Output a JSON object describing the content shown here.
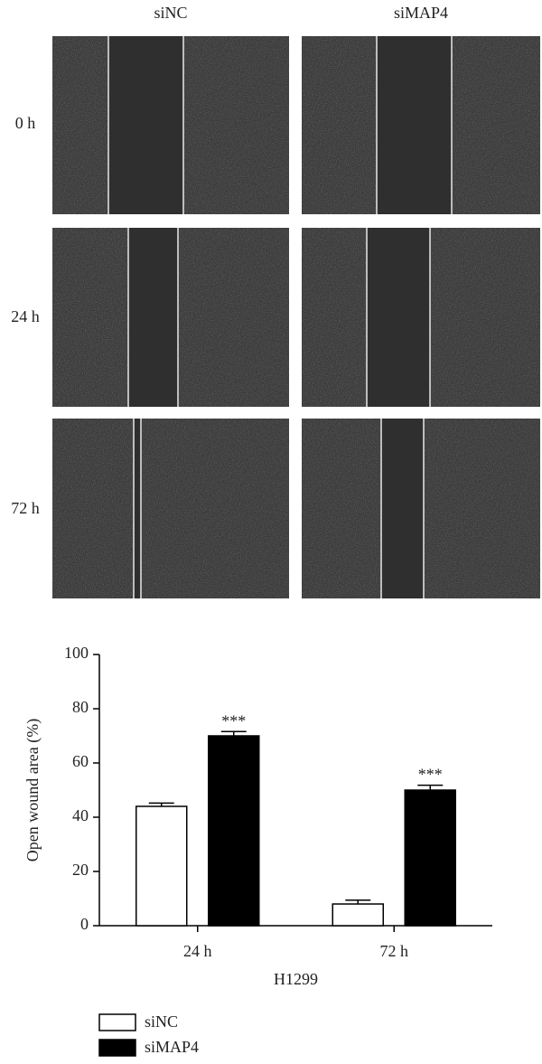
{
  "panel": {
    "columns": [
      "siNC",
      "siMAP4"
    ],
    "rows": [
      "0 h",
      "24 h",
      "72 h"
    ]
  },
  "chart_data": {
    "type": "bar",
    "categories": [
      "24 h",
      "72 h"
    ],
    "series": [
      {
        "name": "siNC",
        "color": "#ffffff",
        "values": [
          44,
          8
        ],
        "errors": [
          1.2,
          1.4
        ]
      },
      {
        "name": "siMAP4",
        "color": "#000000",
        "values": [
          70,
          50
        ],
        "errors": [
          1.6,
          1.8
        ],
        "annotations": [
          "***",
          "***"
        ]
      }
    ],
    "xlabel": "H1299",
    "ylabel": "Open wound area (%)",
    "ylim": [
      0,
      100
    ],
    "yticks": [
      0,
      20,
      40,
      60,
      80,
      100
    ],
    "grid": false,
    "legend": "bottom-left"
  }
}
